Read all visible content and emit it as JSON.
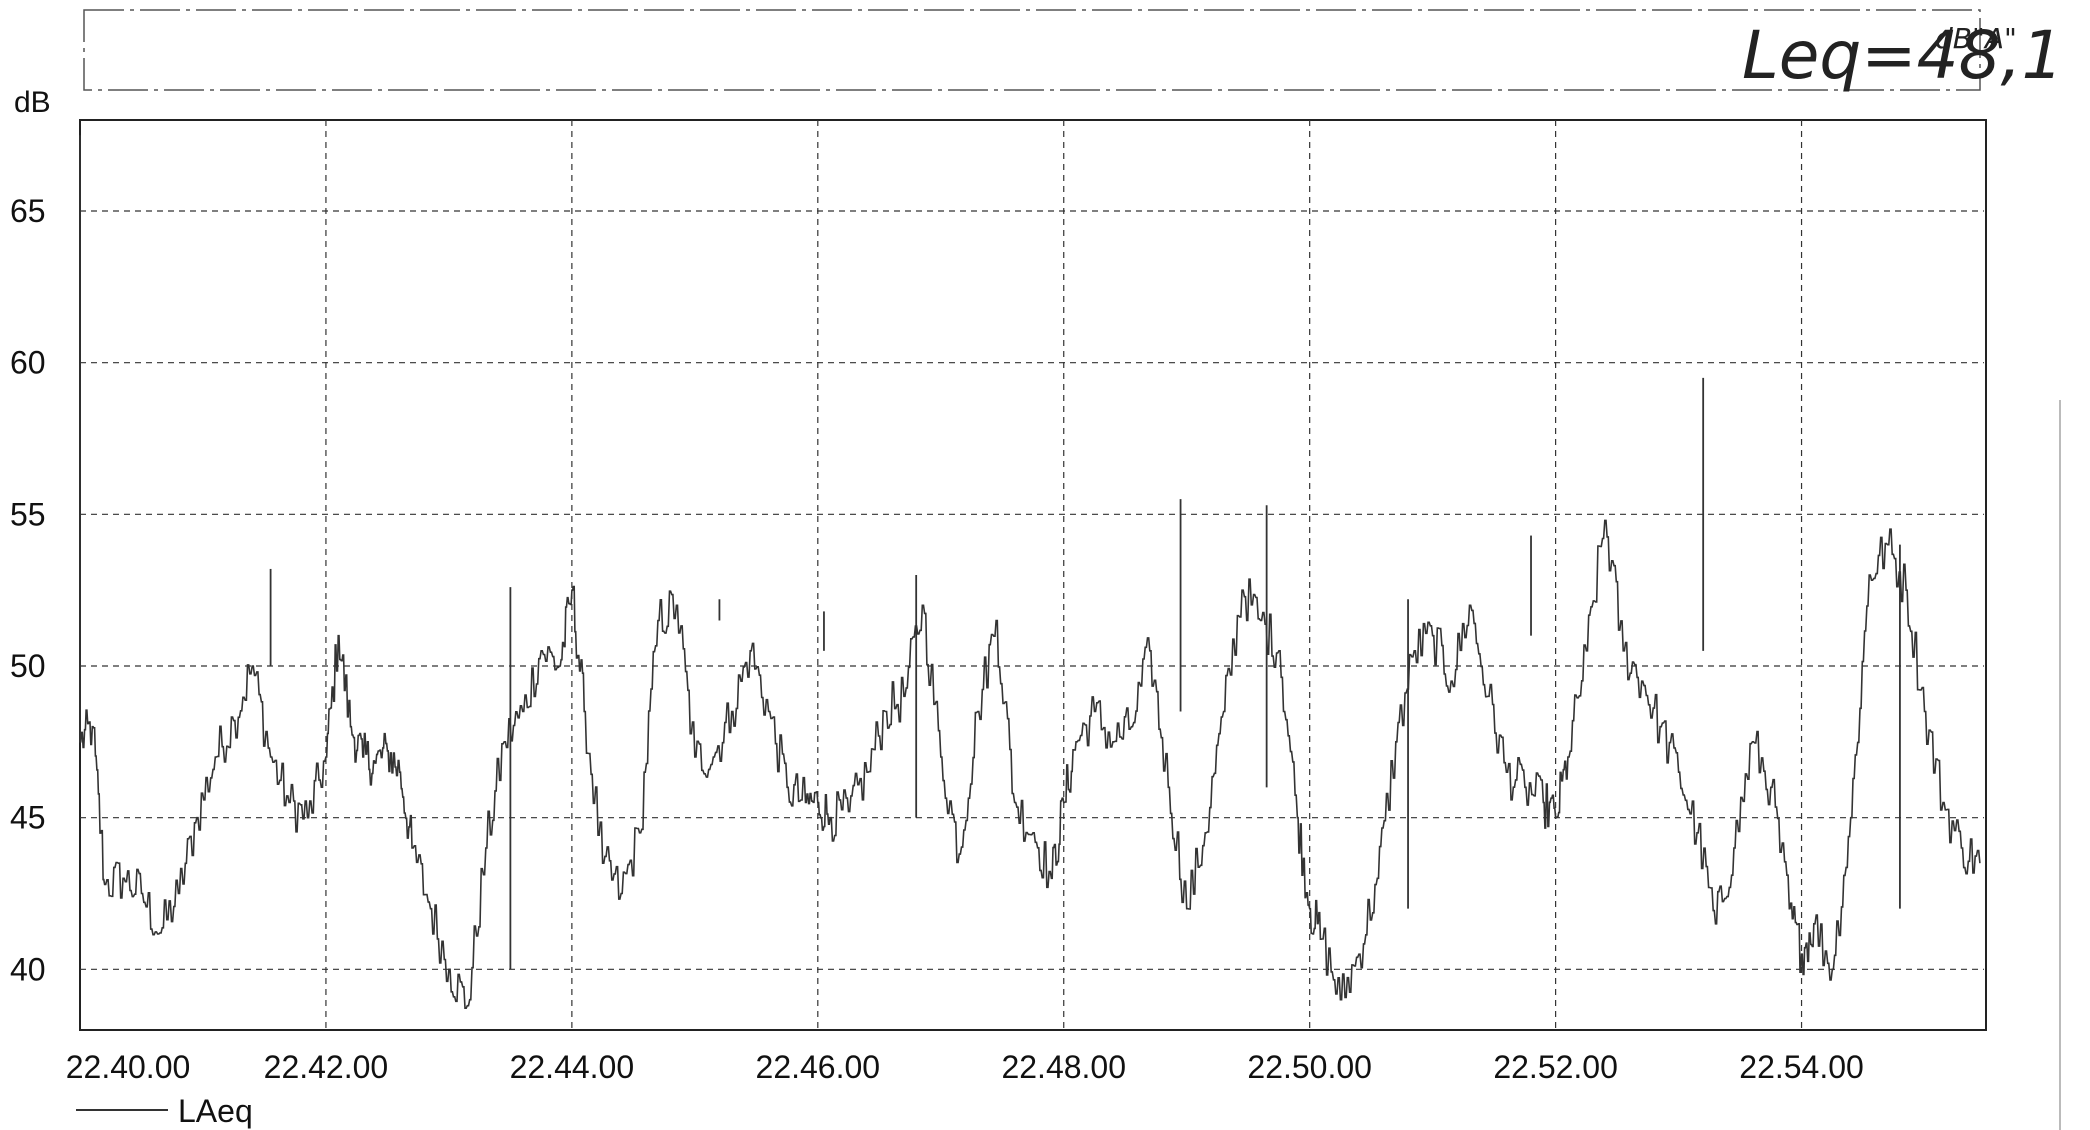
{
  "chart_data": {
    "type": "line",
    "title": "",
    "annotation": {
      "text": "Leq=48,1",
      "unit": "dB\"A\""
    },
    "ylabel": "dB",
    "xlabel": "",
    "ylim": [
      38,
      68
    ],
    "yticks": [
      "40",
      "45",
      "50",
      "55",
      "60",
      "65"
    ],
    "xlim": [
      "22.40.00",
      "22.55.30"
    ],
    "xticks": [
      "22.40.00",
      "22.42.00",
      "22.44.00",
      "22.46.00",
      "22.48.00",
      "22.50.00",
      "22.52.00",
      "22.54.00"
    ],
    "grid": true,
    "legend": {
      "placement": "bottom-left",
      "entries": [
        "LAeq"
      ]
    },
    "series": [
      {
        "name": "LAeq",
        "color": "#333333",
        "x_unit": "minutes after 22.40.00",
        "x": [
          0,
          0.1,
          0.2,
          0.35,
          0.5,
          0.65,
          0.8,
          0.95,
          1.1,
          1.25,
          1.4,
          1.55,
          1.7,
          1.85,
          2.0,
          2.1,
          2.2,
          2.3,
          2.4,
          2.5,
          2.6,
          2.7,
          2.85,
          3.0,
          3.15,
          3.3,
          3.45,
          3.6,
          3.75,
          3.9,
          4.0,
          4.1,
          4.25,
          4.4,
          4.55,
          4.7,
          4.85,
          5.0,
          5.15,
          5.3,
          5.45,
          5.6,
          5.75,
          5.9,
          6.0,
          6.1,
          6.25,
          6.4,
          6.55,
          6.7,
          6.85,
          7.0,
          7.15,
          7.3,
          7.45,
          7.6,
          7.75,
          7.9,
          8.0,
          8.1,
          8.25,
          8.4,
          8.55,
          8.7,
          8.85,
          9.0,
          9.15,
          9.3,
          9.45,
          9.6,
          9.75,
          9.9,
          10.0,
          10.1,
          10.25,
          10.4,
          10.55,
          10.7,
          10.85,
          11.0,
          11.15,
          11.3,
          11.45,
          11.6,
          11.75,
          11.9,
          12.0,
          12.1,
          12.25,
          12.4,
          12.55,
          12.7,
          12.85,
          13.0,
          13.15,
          13.3,
          13.45,
          13.6,
          13.75,
          13.9,
          14.0,
          14.1,
          14.25,
          14.4,
          14.55,
          14.7,
          14.85,
          15.0,
          15.15,
          15.3,
          15.45
        ],
        "values": [
          47.5,
          48.0,
          42.8,
          43.0,
          42.5,
          41.2,
          42.5,
          45.0,
          47.0,
          48.2,
          50.0,
          47.0,
          45.5,
          45.0,
          47.0,
          51.0,
          48.0,
          47.0,
          46.8,
          47.2,
          46.5,
          44.0,
          42.0,
          40.0,
          38.8,
          44.0,
          47.5,
          48.5,
          50.5,
          50.0,
          52.5,
          48.5,
          43.5,
          42.5,
          44.5,
          51.5,
          52.0,
          47.0,
          47.0,
          48.5,
          50.5,
          48.5,
          46.0,
          45.5,
          45.5,
          45.0,
          45.2,
          46.5,
          48.5,
          49.0,
          52.0,
          47.0,
          43.8,
          48.5,
          51.5,
          45.5,
          44.5,
          43.0,
          45.5,
          47.5,
          48.5,
          47.5,
          48.0,
          50.5,
          46.0,
          42.0,
          44.5,
          48.5,
          52.5,
          51.5,
          50.5,
          45.0,
          42.0,
          41.0,
          39.0,
          40.5,
          43.0,
          47.5,
          50.5,
          51.0,
          49.5,
          52.0,
          49.0,
          46.5,
          46.0,
          45.5,
          45.0,
          47.0,
          50.5,
          54.8,
          50.5,
          49.5,
          48.0,
          46.5,
          44.5,
          41.5,
          44.0,
          47.5,
          46.0,
          42.0,
          40.5,
          41.5,
          40.0,
          45.0,
          53.0,
          54.0,
          52.5,
          48.5,
          45.5,
          44.0,
          43.5
        ]
      }
    ],
    "overlay_peaks": [
      {
        "x": 1.55,
        "y": 53.2
      },
      {
        "x": 3.5,
        "y": 52.6
      },
      {
        "x": 5.2,
        "y": 52.2
      },
      {
        "x": 6.05,
        "y": 51.8
      },
      {
        "x": 6.8,
        "y": 53.0
      },
      {
        "x": 8.95,
        "y": 55.5
      },
      {
        "x": 9.65,
        "y": 55.3
      },
      {
        "x": 10.8,
        "y": 52.2
      },
      {
        "x": 11.8,
        "y": 54.3
      },
      {
        "x": 13.2,
        "y": 59.5
      },
      {
        "x": 14.8,
        "y": 54.0
      }
    ]
  }
}
